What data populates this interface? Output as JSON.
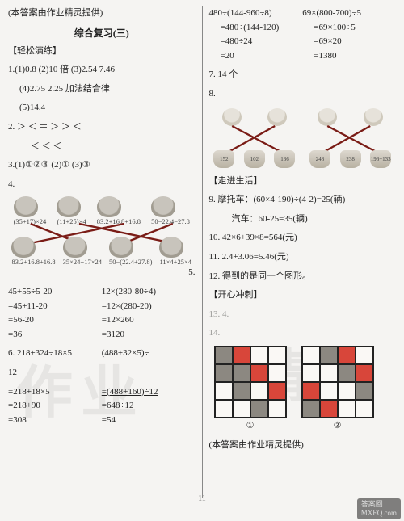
{
  "header_note": "(本答案由作业精灵提供)",
  "title": "综合复习(三)",
  "sec_easy": "【轻松演练】",
  "sec_life": "【走进生活】",
  "sec_fun": "【开心冲刺】",
  "q1_line1": "1.(1)0.8   (2)10 倍   (3)2.54   7.46",
  "q1_line2": "(4)2.75   2.25   加法结合律",
  "q1_line3": "(5)14.4",
  "q2_line1": "2.   ＞   ＜   ＝   ＞   ＞   ＜",
  "q2_line2": "＜   ＜   ＜",
  "q3_line1": "3.(1)①②③   (2)①   (3)③",
  "q4_label": "4.",
  "q4_top_labels": [
    "(35+17)×24",
    "(11+25)×4",
    "83.2+16.8+16.8",
    "50−22.4−27.8"
  ],
  "q4_bot_labels": [
    "83.2+16.8+16.8",
    "35×24+17×24",
    "50−(22.4+27.8)",
    "11×4+25×4"
  ],
  "q5_label": "5.",
  "q5a": {
    "l1": "45+55÷5-20",
    "l2": "=45+11-20",
    "l3": "=56-20",
    "l4": "=36"
  },
  "q5b": {
    "l1": "12×(280-80÷4)",
    "l2": "=12×(280-20)",
    "l3": "=12×260",
    "l4": "=3120"
  },
  "q6_label": "6.",
  "q6a": {
    "l1": "218+324÷18×5",
    "l2": "=218+18×5",
    "l3": "=218+90",
    "l4": "=308"
  },
  "q6b": {
    "l1": "(488+32×5)÷",
    "l1b": "12",
    "l2": "=(488+160)÷12",
    "l3": "=648÷12",
    "l4": "=54"
  },
  "rcol_a": {
    "l1": "480÷(144-960÷8)",
    "l2": "=480÷(144-120)",
    "l3": "=480÷24",
    "l4": "=20"
  },
  "rcol_b": {
    "l1": "69×(800-700)÷5",
    "l2": "=69×100÷5",
    "l3": "=69×20",
    "l4": "=1380"
  },
  "q7": "7.   14 个",
  "q8_label": "8.",
  "q8_pots_a": [
    "152",
    "102",
    "136"
  ],
  "q8_pots_b": [
    "248",
    "238",
    "196+133"
  ],
  "q9_line1": "9.   摩托车：(60×4-190)÷(4-2)=25(辆)",
  "q9_line2": "汽车：60-25=35(辆)",
  "q10": "10.   42×6+39×8=564(元)",
  "q11": "11.   2.4+3.06=5.46(元)",
  "q12": "12.   得到的是同一个图形。",
  "q13": "13.   4.",
  "q14_label": "14.",
  "grid1": [
    [
      "g",
      "r",
      "w",
      "w"
    ],
    [
      "g",
      "g",
      "r",
      "w"
    ],
    [
      "w",
      "g",
      "w",
      "r"
    ],
    [
      "w",
      "w",
      "g",
      "w"
    ]
  ],
  "grid2": [
    [
      "w",
      "g",
      "r",
      "w"
    ],
    [
      "w",
      "w",
      "g",
      "r"
    ],
    [
      "r",
      "w",
      "w",
      "g"
    ],
    [
      "g",
      "r",
      "w",
      "w"
    ]
  ],
  "grid_labels": [
    "①",
    "②"
  ],
  "footer_note": "(本答案由作业精灵提供)",
  "page_num": "11",
  "corner1": "答案圈",
  "corner2": "MXEQ.com",
  "colors": {
    "line_red": "#7a1c16",
    "grid_red": "#d8463a",
    "grid_grey": "#8c8881",
    "bg": "#f5f4f2"
  }
}
